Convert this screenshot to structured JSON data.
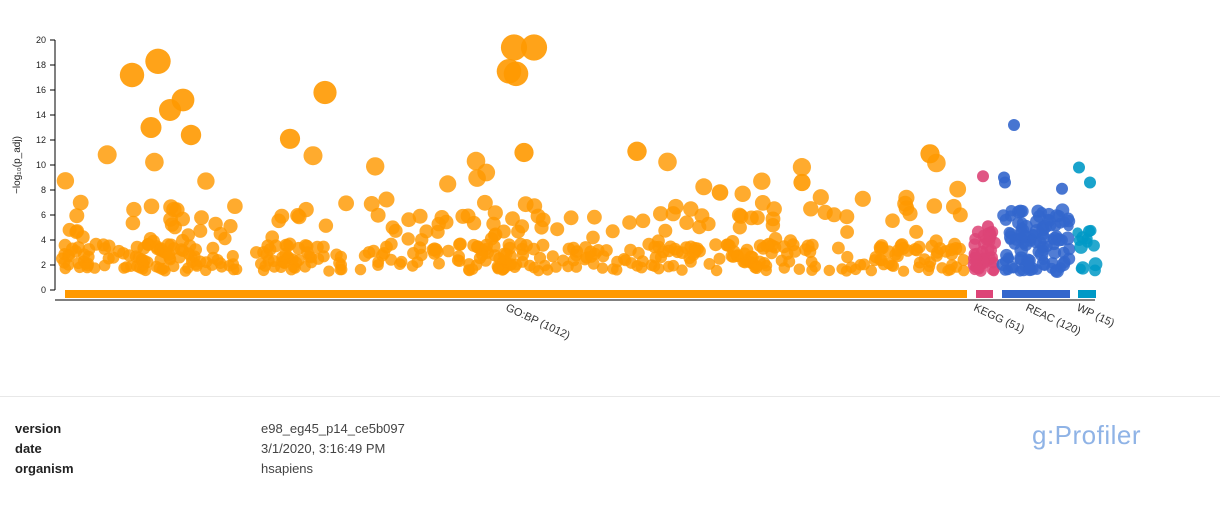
{
  "colors": {
    "GO:BP": "#ff9900",
    "KEGG": "#dd4477",
    "REAC": "#3366cc",
    "WP": "#0099c6"
  },
  "chart_data": {
    "type": "scatter",
    "ylabel": "−log₁₀(p_adj)",
    "ylim": [
      0,
      20
    ],
    "yticks": [
      0,
      2,
      4,
      6,
      8,
      10,
      12,
      14,
      16,
      18,
      20
    ],
    "sources": [
      {
        "name": "GO:BP",
        "count": 1012,
        "label": "GO:BP (1012)"
      },
      {
        "name": "KEGG",
        "count": 51,
        "label": "KEGG (51)"
      },
      {
        "name": "REAC",
        "count": 120,
        "label": "REAC (120)"
      },
      {
        "name": "WP",
        "count": 15,
        "label": "WP (15)"
      }
    ],
    "highlighted_points": [
      {
        "source": "GO:BP",
        "y": 19.4
      },
      {
        "source": "GO:BP",
        "y": 19.4
      },
      {
        "source": "GO:BP",
        "y": 18.3
      },
      {
        "source": "GO:BP",
        "y": 17.5
      },
      {
        "source": "GO:BP",
        "y": 17.3
      },
      {
        "source": "GO:BP",
        "y": 17.2
      },
      {
        "source": "GO:BP",
        "y": 15.8
      },
      {
        "source": "GO:BP",
        "y": 15.2
      },
      {
        "source": "GO:BP",
        "y": 14.4
      },
      {
        "source": "GO:BP",
        "y": 13.0
      },
      {
        "source": "GO:BP",
        "y": 12.4
      },
      {
        "source": "GO:BP",
        "y": 12.1
      },
      {
        "source": "GO:BP",
        "y": 11.1
      },
      {
        "source": "GO:BP",
        "y": 11.0
      },
      {
        "source": "GO:BP",
        "y": 10.9
      },
      {
        "source": "GO:BP",
        "y": 8.6
      },
      {
        "source": "GO:BP",
        "y": 7.8
      },
      {
        "source": "KEGG",
        "y": 9.1
      },
      {
        "source": "KEGG",
        "y": 5.1
      },
      {
        "source": "REAC",
        "y": 13.2
      },
      {
        "source": "REAC",
        "y": 9.0
      },
      {
        "source": "REAC",
        "y": 8.6
      },
      {
        "source": "REAC",
        "y": 8.1
      },
      {
        "source": "WP",
        "y": 9.8
      },
      {
        "source": "WP",
        "y": 8.6
      },
      {
        "source": "WP",
        "y": 4.7
      }
    ]
  },
  "footer": {
    "rows": [
      {
        "key": "version",
        "value": "e98_eg45_p14_ce5b097"
      },
      {
        "key": "date",
        "value": "3/1/2020, 3:16:49 PM"
      },
      {
        "key": "organism",
        "value": "hsapiens"
      }
    ],
    "brand": "g:Profiler"
  }
}
